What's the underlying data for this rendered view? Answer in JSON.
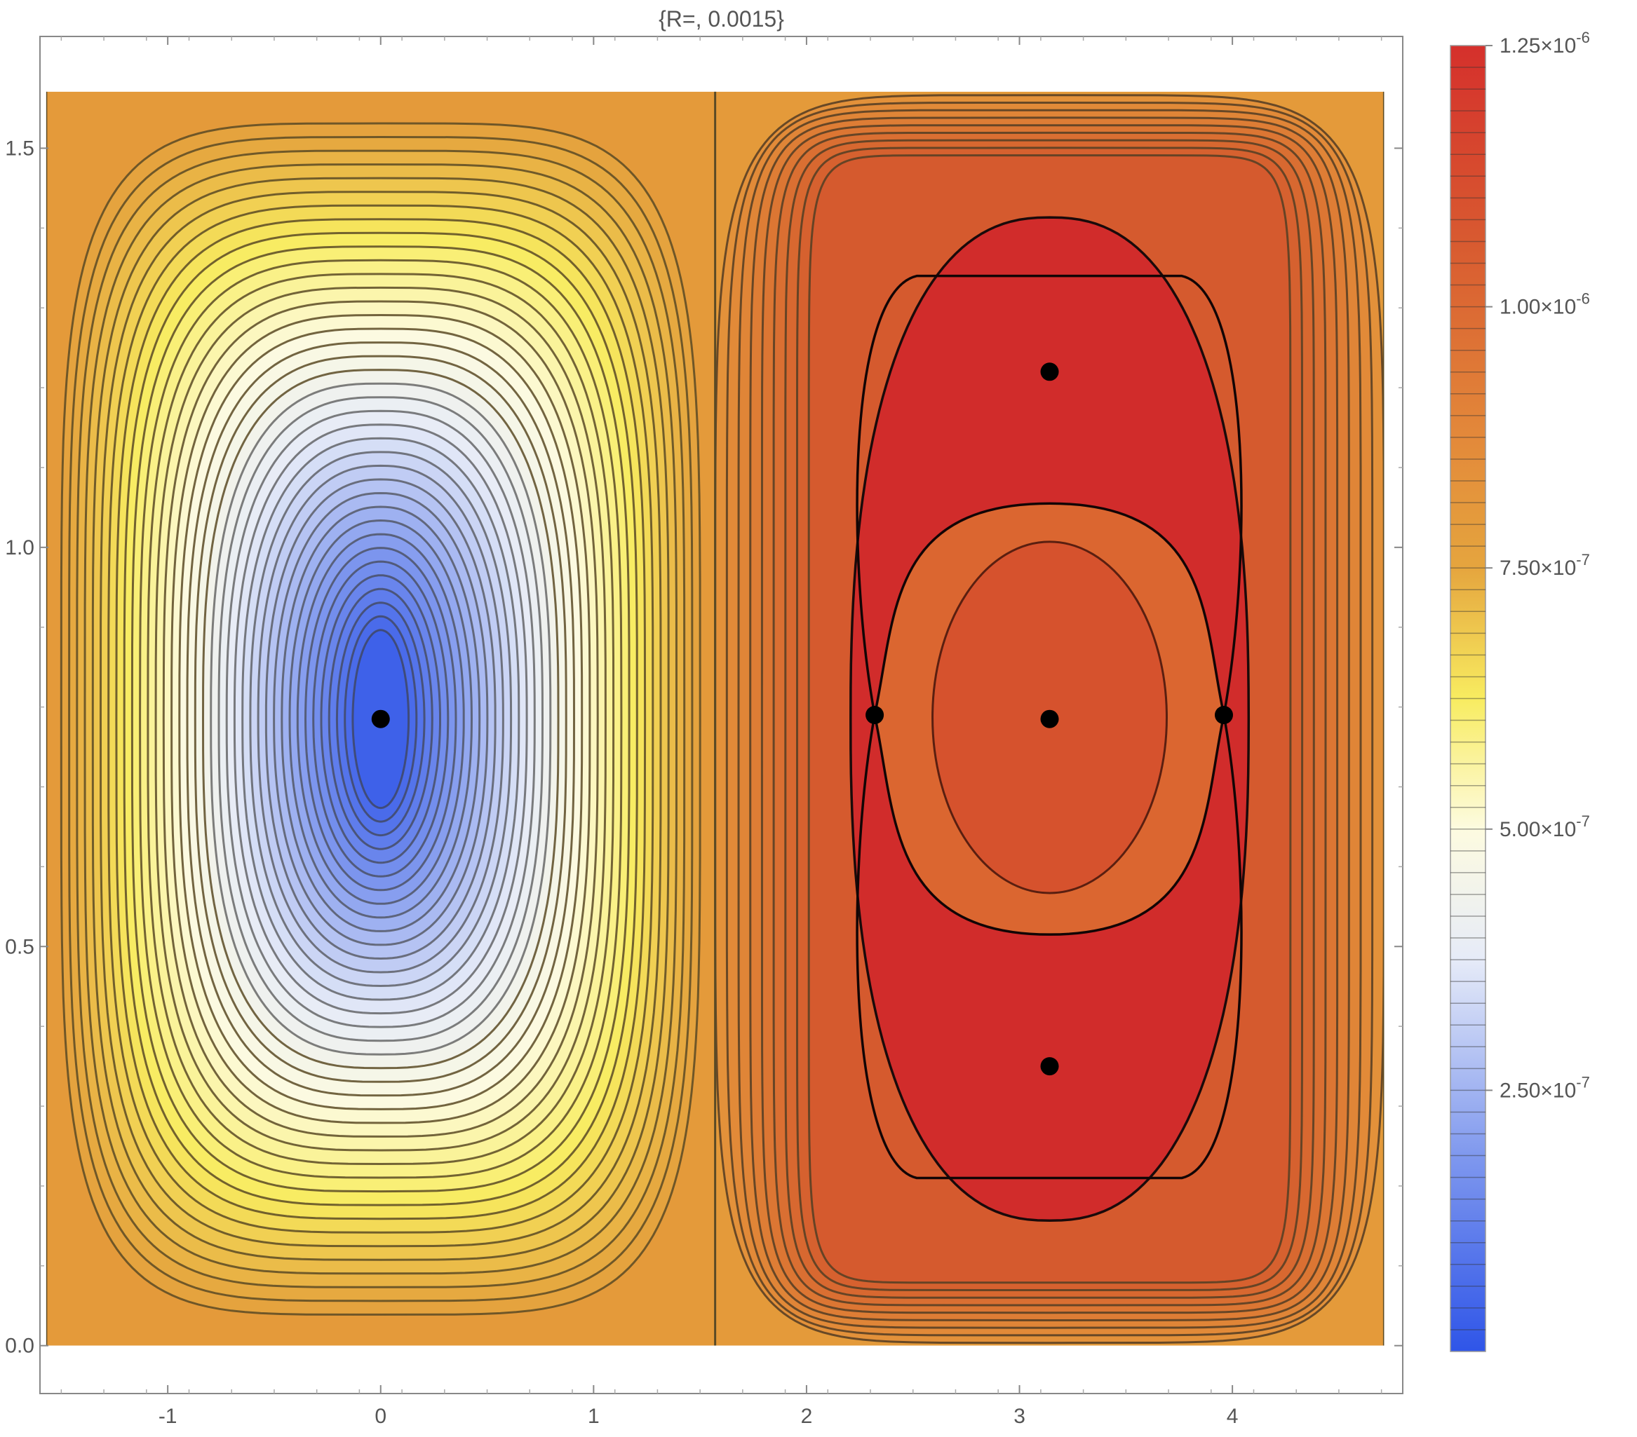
{
  "chart_data": {
    "type": "contour",
    "title": "{R=, 0.0015}",
    "xlabel": "",
    "ylabel": "",
    "xlim": [
      -1.6,
      4.8
    ],
    "ylim": [
      -0.06,
      1.64
    ],
    "plot_region": {
      "x": [
        -1.5708,
        4.7124
      ],
      "y": [
        0.0,
        1.5708
      ]
    },
    "x_ticks": [
      "-1",
      "0",
      "1",
      "2",
      "3",
      "4"
    ],
    "x_tick_values": [
      -1,
      0,
      1,
      2,
      3,
      4
    ],
    "y_ticks": [
      "0.0",
      "0.5",
      "1.0",
      "1.5"
    ],
    "y_tick_values": [
      0.0,
      0.5,
      1.0,
      1.5
    ],
    "colorbar": {
      "range": [
        0,
        1.25e-06
      ],
      "tick_values": [
        2.5e-07,
        5e-07,
        7.5e-07,
        1e-06,
        1.25e-06
      ],
      "tick_labels": [
        {
          "mantissa": "2.50",
          "exponent": "-7"
        },
        {
          "mantissa": "5.00",
          "exponent": "-7"
        },
        {
          "mantissa": "7.50",
          "exponent": "-7"
        },
        {
          "mantissa": "1.00",
          "exponent": "-6"
        },
        {
          "mantissa": "1.25",
          "exponent": "-6"
        }
      ],
      "gradient_stops": [
        {
          "t": 0.0,
          "color": "#2f55e8"
        },
        {
          "t": 0.15,
          "color": "#7f98ee"
        },
        {
          "t": 0.3,
          "color": "#e6ebf8"
        },
        {
          "t": 0.4,
          "color": "#fdfbe0"
        },
        {
          "t": 0.5,
          "color": "#f8ec60"
        },
        {
          "t": 0.6,
          "color": "#e5a53e"
        },
        {
          "t": 0.7,
          "color": "#e3893a"
        },
        {
          "t": 0.85,
          "color": "#d85a30"
        },
        {
          "t": 1.0,
          "color": "#d5302c"
        }
      ]
    },
    "regions": [
      {
        "name": "blue-minimum-cell",
        "center": [
          0.0,
          0.785
        ],
        "x_range": [
          -1.5708,
          1.5708
        ],
        "y_range": [
          0.0,
          1.5708
        ],
        "min_value": 0.0,
        "edge_value": 7.6e-07
      },
      {
        "name": "red-maximum-cell",
        "center": [
          3.1416,
          0.785
        ],
        "x_range": [
          1.5708,
          4.7124
        ],
        "y_range": [
          0.0,
          1.5708
        ],
        "edge_value": 8.2e-07,
        "peak_value": 1.22e-06
      }
    ],
    "critical_points": [
      {
        "x": 0.0,
        "y": 0.785
      },
      {
        "x": 3.1416,
        "y": 1.22
      },
      {
        "x": 3.1416,
        "y": 0.785
      },
      {
        "x": 3.1416,
        "y": 0.35
      },
      {
        "x": 2.32,
        "y": 0.79
      },
      {
        "x": 3.96,
        "y": 0.79
      }
    ]
  }
}
